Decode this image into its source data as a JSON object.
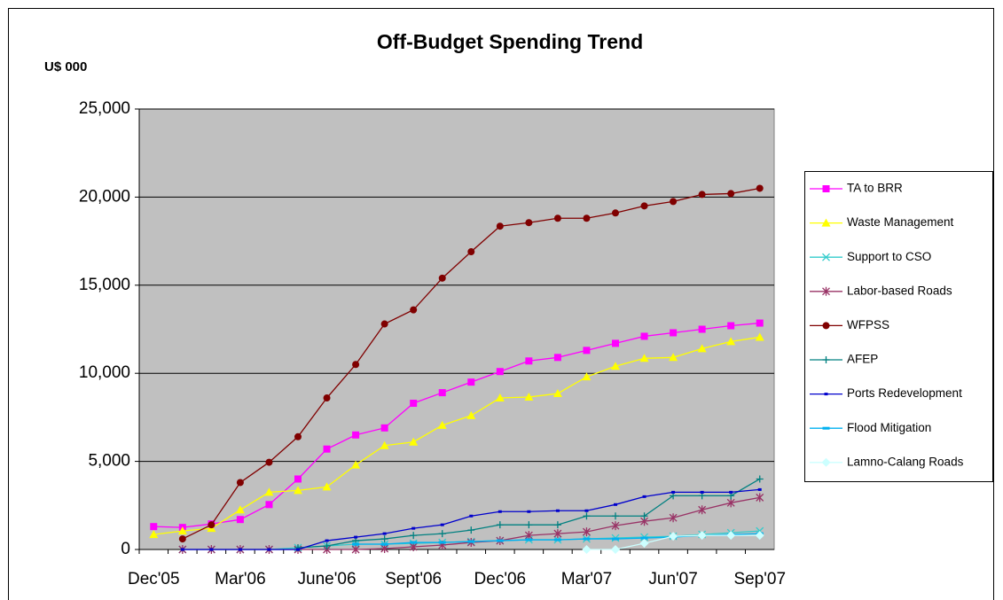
{
  "chart_data": {
    "type": "line",
    "title": "Off-Budget Spending Trend",
    "y_label": "U$ 000",
    "categories": [
      "Dec'05",
      null,
      null,
      "Mar'06",
      null,
      null,
      "June'06",
      null,
      null,
      "Sept'06",
      null,
      null,
      "Dec'06",
      null,
      null,
      "Mar'07",
      null,
      null,
      "Jun'07",
      null,
      null,
      "Sep'07"
    ],
    "ylim": [
      0,
      25000
    ],
    "yticks": [
      {
        "value": 0,
        "label": "0"
      },
      {
        "value": 5000,
        "label": "5,000"
      },
      {
        "value": 10000,
        "label": "10,000"
      },
      {
        "value": 15000,
        "label": "15,000"
      },
      {
        "value": 20000,
        "label": "20,000"
      },
      {
        "value": 25000,
        "label": "25,000"
      }
    ],
    "grid": true,
    "legend": "right",
    "series": [
      {
        "name": "TA to BRR",
        "color": "#ff00ff",
        "marker": "square",
        "values": [
          1300,
          1250,
          1450,
          1700,
          2550,
          4000,
          5700,
          6500,
          6900,
          8300,
          8900,
          9500,
          10100,
          10700,
          10900,
          11300,
          11700,
          12100,
          12300,
          12500,
          12700,
          12850
        ]
      },
      {
        "name": "Waste Management",
        "color": "#ffff00",
        "marker": "triangle",
        "values": [
          850,
          1050,
          1200,
          2250,
          3250,
          3350,
          3550,
          4800,
          5900,
          6100,
          7050,
          7600,
          8600,
          8650,
          8850,
          9800,
          10400,
          10850,
          10900,
          11400,
          11800,
          12050
        ]
      },
      {
        "name": "Support to CSO",
        "color": "#33cccc",
        "marker": "x",
        "values": [
          null,
          0,
          0,
          0,
          0,
          100,
          200,
          300,
          300,
          350,
          400,
          450,
          500,
          550,
          550,
          600,
          650,
          700,
          750,
          850,
          950,
          1050
        ]
      },
      {
        "name": "Labor-based Roads",
        "color": "#993366",
        "marker": "asterisk",
        "values": [
          null,
          0,
          0,
          0,
          0,
          0,
          0,
          0,
          50,
          150,
          250,
          400,
          500,
          800,
          900,
          1000,
          1350,
          1600,
          1800,
          2250,
          2650,
          2950
        ]
      },
      {
        "name": "WFPSS",
        "color": "#800000",
        "marker": "circle",
        "values": [
          null,
          600,
          1400,
          3800,
          4950,
          6400,
          8600,
          10500,
          12800,
          13600,
          15400,
          16900,
          18350,
          18550,
          18800,
          18800,
          19100,
          19500,
          19750,
          20150,
          20200,
          20500
        ]
      },
      {
        "name": "AFEP",
        "color": "#008080",
        "marker": "plus",
        "values": [
          null,
          null,
          null,
          null,
          null,
          100,
          200,
          500,
          600,
          800,
          900,
          1100,
          1400,
          1400,
          1400,
          1900,
          1900,
          1900,
          3050,
          3050,
          3050,
          4000
        ]
      },
      {
        "name": "Ports Redevelopment",
        "color": "#0000cc",
        "marker": "dot",
        "values": [
          null,
          0,
          0,
          0,
          0,
          0,
          500,
          700,
          900,
          1200,
          1400,
          1900,
          2150,
          2150,
          2200,
          2200,
          2550,
          3000,
          3250,
          3250,
          3250,
          3400
        ]
      },
      {
        "name": "Flood Mitigation",
        "color": "#00b0f0",
        "marker": "dash",
        "values": [
          null,
          null,
          null,
          null,
          null,
          null,
          null,
          300,
          300,
          400,
          400,
          450,
          500,
          550,
          550,
          600,
          600,
          650,
          700,
          800,
          850,
          900
        ]
      },
      {
        "name": "Lamno-Calang Roads",
        "color": "#ccffff",
        "marker": "diamond",
        "values": [
          null,
          null,
          null,
          null,
          null,
          null,
          null,
          null,
          null,
          null,
          null,
          null,
          null,
          null,
          null,
          0,
          0,
          350,
          750,
          800,
          800,
          800
        ]
      }
    ]
  }
}
